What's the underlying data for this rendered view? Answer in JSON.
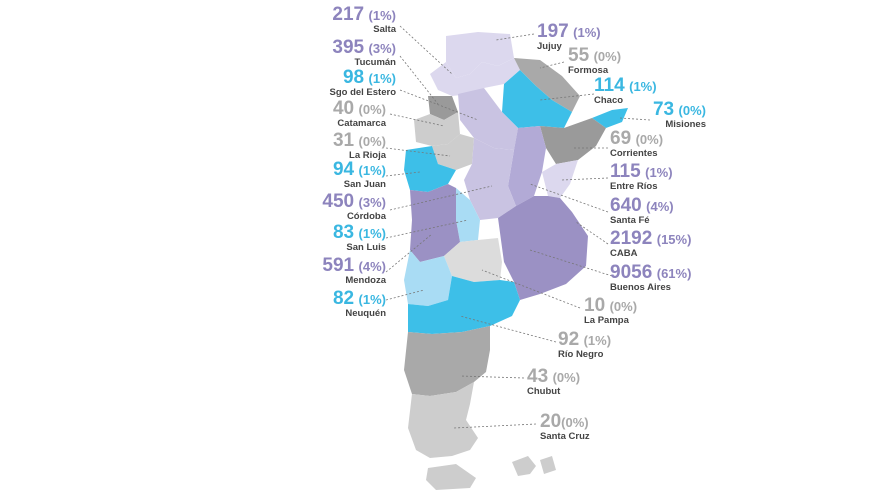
{
  "colors": {
    "purple": "#9b91c4",
    "cyan": "#3dbfe8",
    "gray": "#a9a9a9",
    "light_gray": "#cdcdcd",
    "dark_gray": "#9a9a9a",
    "lavender": "#c9c3e2",
    "light_cyan": "#a9dcf4",
    "pale_lavender": "#dcd8ee",
    "label_purple": "#8d84bd",
    "label_cyan": "#3ab7e1",
    "label_gray": "#a9a9a9"
  },
  "provinces": [
    {
      "id": "salta",
      "value": "217",
      "pct": "(1%)",
      "name": "Salta",
      "label_color": "purple"
    },
    {
      "id": "jujuy",
      "value": "197",
      "pct": "(1%)",
      "name": "Jujuy",
      "label_color": "purple"
    },
    {
      "id": "tucuman",
      "value": "395",
      "pct": "(3%)",
      "name": "Tucumán",
      "label_color": "purple"
    },
    {
      "id": "formosa",
      "value": "55",
      "pct": "(0%)",
      "name": "Formosa",
      "label_color": "gray"
    },
    {
      "id": "sgo",
      "value": "98",
      "pct": "(1%)",
      "name": "Sgo del Estero",
      "label_color": "cyan"
    },
    {
      "id": "chaco",
      "value": "114",
      "pct": "(1%)",
      "name": "Chaco",
      "label_color": "cyan"
    },
    {
      "id": "catamarca",
      "value": "40",
      "pct": "(0%)",
      "name": "Catamarca",
      "label_color": "gray"
    },
    {
      "id": "misiones",
      "value": "73",
      "pct": "(0%)",
      "name": "Misiones",
      "label_color": "cyan"
    },
    {
      "id": "larioja",
      "value": "31",
      "pct": "(0%)",
      "name": "La Rioja",
      "label_color": "gray"
    },
    {
      "id": "corrientes",
      "value": "69",
      "pct": "(0%)",
      "name": "Corrientes",
      "label_color": "gray"
    },
    {
      "id": "sanjuan",
      "value": "94",
      "pct": "(1%)",
      "name": "San Juan",
      "label_color": "cyan"
    },
    {
      "id": "entrerios",
      "value": "115",
      "pct": "(1%)",
      "name": "Entre Ríos",
      "label_color": "purple"
    },
    {
      "id": "cordoba",
      "value": "450",
      "pct": "(3%)",
      "name": "Córdoba",
      "label_color": "purple"
    },
    {
      "id": "santafe",
      "value": "640",
      "pct": "(4%)",
      "name": "Santa Fé",
      "label_color": "purple"
    },
    {
      "id": "sanluis",
      "value": "83",
      "pct": "(1%)",
      "name": "San Luis",
      "label_color": "cyan"
    },
    {
      "id": "caba",
      "value": "2192",
      "pct": "(15%)",
      "name": "CABA",
      "label_color": "purple"
    },
    {
      "id": "mendoza",
      "value": "591",
      "pct": "(4%)",
      "name": "Mendoza",
      "label_color": "purple"
    },
    {
      "id": "bsas",
      "value": "9056",
      "pct": "(61%)",
      "name": "Buenos Aires",
      "label_color": "purple"
    },
    {
      "id": "neuquen",
      "value": "82",
      "pct": "(1%)",
      "name": "Neuquén",
      "label_color": "cyan"
    },
    {
      "id": "lapampa",
      "value": "10",
      "pct": "(0%)",
      "name": "La Pampa",
      "label_color": "gray"
    },
    {
      "id": "rionegro",
      "value": "92",
      "pct": "(1%)",
      "name": "Río Negro",
      "label_color": "gray"
    },
    {
      "id": "chubut",
      "value": "43",
      "pct": "(0%)",
      "name": "Chubut",
      "label_color": "gray"
    },
    {
      "id": "santacruz",
      "value": "20",
      "pct": "(0%)",
      "name": "Santa Cruz",
      "label_color": "gray"
    }
  ]
}
